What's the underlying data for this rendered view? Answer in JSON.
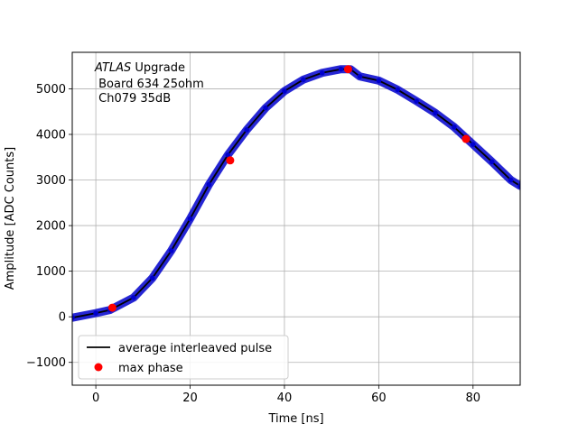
{
  "chart_data": {
    "type": "line",
    "title": "",
    "xlabel": "Time [ns]",
    "ylabel": "Amplitude [ADC Counts]",
    "xlim": [
      -5,
      90
    ],
    "ylim": [
      -1500,
      5800
    ],
    "grid": true,
    "x_ticks": [
      0,
      20,
      40,
      60,
      80
    ],
    "y_ticks": [
      -1000,
      0,
      1000,
      2000,
      3000,
      4000,
      5000
    ],
    "annotation": {
      "line1_italic": "ATLAS",
      "line1_rest": " Upgrade",
      "line2": " Board 634 25ohm",
      "line3": " Ch079 35dB"
    },
    "legend": {
      "placement": "lower-left",
      "entries": [
        {
          "label": "average interleaved pulse",
          "marker": "line",
          "color": "#000000"
        },
        {
          "label": "max phase",
          "marker": "circle",
          "color": "#ff0000"
        }
      ]
    },
    "series": [
      {
        "name": "average interleaved pulse",
        "color": "#000000",
        "marker_color": "#0000cc",
        "x": [
          -5,
          0,
          3,
          8,
          12,
          16,
          20,
          24,
          28,
          32,
          36,
          40,
          44,
          48,
          52,
          54,
          56,
          60,
          64,
          68,
          72,
          76,
          80,
          84,
          88,
          90
        ],
        "y": [
          -20,
          80,
          150,
          420,
          850,
          1450,
          2150,
          2900,
          3550,
          4100,
          4580,
          4950,
          5200,
          5350,
          5430,
          5430,
          5270,
          5180,
          4980,
          4730,
          4470,
          4160,
          3780,
          3400,
          3000,
          2870
        ]
      },
      {
        "name": "max phase",
        "color": "#ff0000",
        "x": [
          3.5,
          28.5,
          53.5,
          78.5
        ],
        "y": [
          200,
          3430,
          5430,
          3900
        ]
      }
    ]
  }
}
